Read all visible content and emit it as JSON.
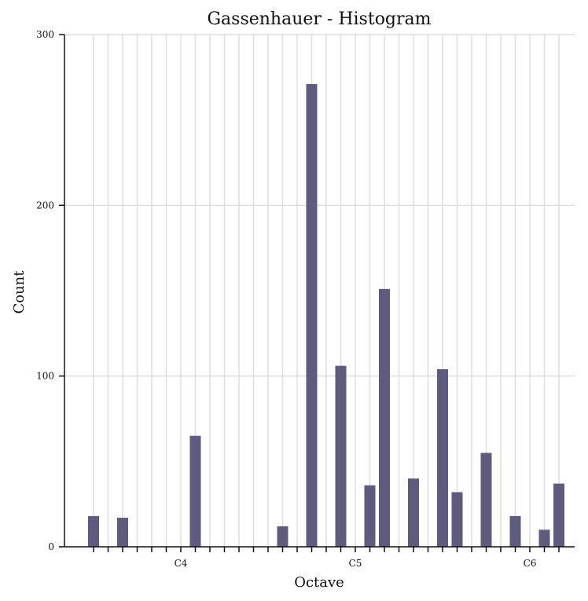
{
  "chart_data": {
    "type": "bar",
    "title": "Gassenhauer - Histogram",
    "xlabel": "Octave",
    "ylabel": "Count",
    "ylim": [
      0,
      300
    ],
    "yticks": [
      0,
      100,
      200,
      300
    ],
    "xticks": [
      {
        "label": "C4",
        "index": 7
      },
      {
        "label": "C5",
        "index": 19
      },
      {
        "label": "C6",
        "index": 31
      }
    ],
    "bin_count": 33,
    "bars": [
      {
        "index": 1,
        "value": 18
      },
      {
        "index": 3,
        "value": 17
      },
      {
        "index": 8,
        "value": 65
      },
      {
        "index": 14,
        "value": 12
      },
      {
        "index": 16,
        "value": 271
      },
      {
        "index": 18,
        "value": 106
      },
      {
        "index": 20,
        "value": 36
      },
      {
        "index": 21,
        "value": 151
      },
      {
        "index": 23,
        "value": 40
      },
      {
        "index": 25,
        "value": 104
      },
      {
        "index": 26,
        "value": 32
      },
      {
        "index": 28,
        "value": 55
      },
      {
        "index": 30,
        "value": 18
      },
      {
        "index": 32,
        "value": 10
      },
      {
        "index": 33,
        "value": 37
      }
    ],
    "bar_color": "#5f5b7e",
    "grid": true
  }
}
